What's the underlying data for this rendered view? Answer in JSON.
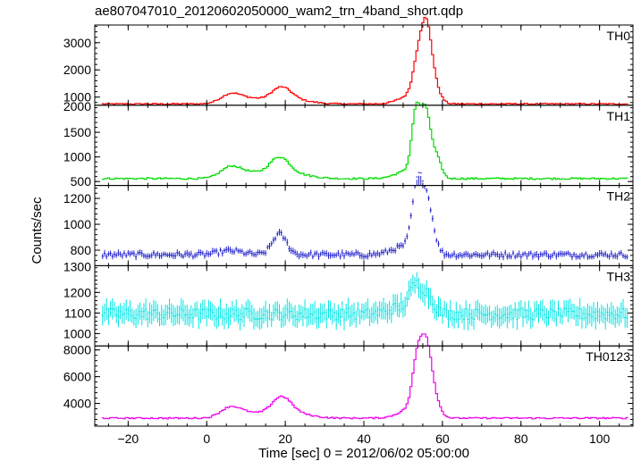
{
  "chart_data": {
    "type": "line",
    "title": "ae807047010_20120602050000_wam2_trn_4band_short.qdp",
    "xlabel": "Time [sec] 0 = 2012/06/02 05:00:00",
    "ylabel": "Counts/sec",
    "xlim": [
      -28.5,
      108.5
    ],
    "xticks": [
      -20,
      0,
      20,
      40,
      60,
      80,
      100
    ],
    "panels": [
      {
        "name": "TH0",
        "color": "#ff0000",
        "ylim": [
          700,
          3650
        ],
        "yticks": [
          1000,
          2000,
          3000
        ],
        "ytick_labels": [
          "1000",
          "2000",
          "3000"
        ],
        "top_label": "",
        "errorbars": false,
        "base": 750,
        "noise": 25,
        "err": 0,
        "peaks": [
          [
            6,
            2.5,
            300
          ],
          [
            11,
            4,
            200
          ],
          [
            19,
            2.5,
            530
          ],
          [
            23,
            4,
            120
          ],
          [
            53.5,
            1.2,
            1000
          ],
          [
            55.8,
            1.4,
            2700
          ],
          [
            52,
            3,
            300
          ],
          [
            58,
            1.5,
            500
          ]
        ]
      },
      {
        "name": "TH1",
        "color": "#00dd00",
        "ylim": [
          420,
          2050
        ],
        "yticks": [
          500,
          1000,
          1500
        ],
        "ytick_labels": [
          "500",
          "1000",
          "1500"
        ],
        "top_label": "2000",
        "errorbars": false,
        "base": 560,
        "noise": 18,
        "err": 0,
        "peaks": [
          [
            6,
            2.5,
            200
          ],
          [
            11,
            4,
            120
          ],
          [
            18.5,
            2.5,
            380
          ],
          [
            23,
            4,
            80
          ],
          [
            53.3,
            1.1,
            1250
          ],
          [
            55.8,
            1.2,
            1300
          ],
          [
            51,
            3,
            150
          ],
          [
            58.5,
            1.2,
            420
          ]
        ]
      },
      {
        "name": "TH2",
        "color": "#2222cc",
        "ylim": [
          680,
          1300
        ],
        "yticks": [
          800,
          1000,
          1200
        ],
        "ytick_labels": [
          "800",
          "1000",
          "1200"
        ],
        "top_label": "",
        "errorbars": true,
        "base": 765,
        "noise": 18,
        "err": 22,
        "peaks": [
          [
            6,
            3,
            30
          ],
          [
            18.5,
            1.8,
            160
          ],
          [
            53.5,
            1.3,
            440
          ],
          [
            56,
            1.6,
            420
          ],
          [
            50,
            3,
            60
          ]
        ]
      },
      {
        "name": "TH3",
        "color": "#00e5e5",
        "ylim": [
          940,
          1330
        ],
        "yticks": [
          1000,
          1100,
          1200
        ],
        "ytick_labels": [
          "1000",
          "1100",
          "1200"
        ],
        "top_label": "1300",
        "errorbars": true,
        "base": 1095,
        "noise": 28,
        "err": 45,
        "peaks": [
          [
            53,
            1.5,
            110
          ],
          [
            56,
            1.8,
            90
          ],
          [
            49,
            3,
            30
          ]
        ]
      },
      {
        "name": "TH0123",
        "color": "#ee00ee",
        "ylim": [
          2300,
          8300
        ],
        "yticks": [
          4000,
          6000,
          8000
        ],
        "ytick_labels": [
          "4000",
          "6000",
          "8000"
        ],
        "top_label": "",
        "errorbars": false,
        "base": 2900,
        "noise": 55,
        "err": 0,
        "peaks": [
          [
            6,
            2.5,
            700
          ],
          [
            11,
            4,
            380
          ],
          [
            19,
            2.5,
            1400
          ],
          [
            23,
            4,
            300
          ],
          [
            53.5,
            1.2,
            3300
          ],
          [
            55.8,
            1.4,
            5000
          ],
          [
            52,
            3,
            700
          ],
          [
            58,
            1.5,
            1100
          ]
        ]
      }
    ]
  }
}
